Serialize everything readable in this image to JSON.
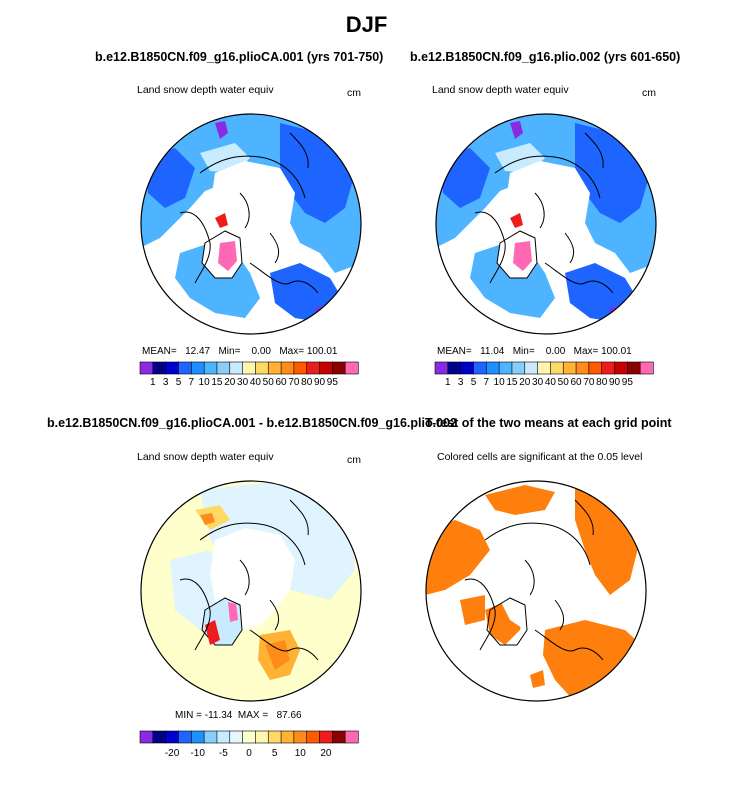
{
  "title": "DJF",
  "panels": [
    {
      "id": "p1",
      "title": "b.e12.B1850CN.f09_g16.plioCA.001 (yrs 701-750)",
      "subtitle": "Land snow depth water equiv",
      "unit": "cm",
      "stats": {
        "mean_label": "MEAN=",
        "mean": "12.47",
        "min_label": "Min=",
        "min": "0.00",
        "max_label": "Max=",
        "max": "100.01"
      }
    },
    {
      "id": "p2",
      "title": "b.e12.B1850CN.f09_g16.plio.002 (yrs 601-650)",
      "subtitle": "Land snow depth water equiv",
      "unit": "cm",
      "stats": {
        "mean_label": "MEAN=",
        "mean": "11.04",
        "min_label": "Min=",
        "min": "0.00",
        "max_label": "Max=",
        "max": "100.01"
      }
    },
    {
      "id": "p3",
      "title": "b.e12.B1850CN.f09_g16.plioCA.001 - b.e12.B1850CN.f09_g16.plio.002",
      "subtitle": "Land snow depth water equiv",
      "unit": "cm",
      "stats": {
        "min_label": "MIN =",
        "min": "-11.34",
        "max_label": "MAX =",
        "max": "87.66"
      }
    },
    {
      "id": "p4",
      "title": "T-test of the two means at each grid point",
      "subtitle": "Colored cells are significant at the 0.05 level"
    }
  ],
  "colorbars": {
    "absolute": {
      "colors": [
        "#8a2be2",
        "#00008b",
        "#0000cd",
        "#1e64ff",
        "#1e90ff",
        "#4fb4ff",
        "#87cefa",
        "#c8ebff",
        "#fff5b0",
        "#ffd966",
        "#ffb233",
        "#ff8c1a",
        "#ff5a00",
        "#ee1c1c",
        "#c80000",
        "#8b0000",
        "#ff69b4"
      ],
      "labels": [
        "1",
        "3",
        "5",
        "7",
        "10",
        "15",
        "20",
        "30",
        "40",
        "50",
        "60",
        "70",
        "80",
        "90",
        "95"
      ]
    },
    "difference": {
      "colors": [
        "#8a2be2",
        "#00008b",
        "#0000cd",
        "#1e64ff",
        "#1e90ff",
        "#87cefa",
        "#c8ebff",
        "#e6f8ff",
        "#ffffcc",
        "#fff5b0",
        "#ffd966",
        "#ffb233",
        "#ff8c1a",
        "#ff5a00",
        "#ee1c1c",
        "#8b0000",
        "#ff69b4"
      ],
      "labels": [
        "-20",
        "-10",
        "-5",
        "0",
        "5",
        "10",
        "20"
      ]
    }
  },
  "map_colors": {
    "land_outline": "#000000",
    "ocean": "#ffffff",
    "snow_deep_blue": "#1e64ff",
    "snow_light_blue": "#4fb4ff",
    "snow_pale": "#c8ebff",
    "snow_purple": "#8a2be2",
    "snow_pink": "#ff69b4",
    "snow_red": "#ee1c1c",
    "diff_yellow": "#ffffcc",
    "diff_lightblue": "#dff4ff",
    "diff_orange": "#ff8c1a",
    "ttest_orange": "#ff7f0e"
  }
}
